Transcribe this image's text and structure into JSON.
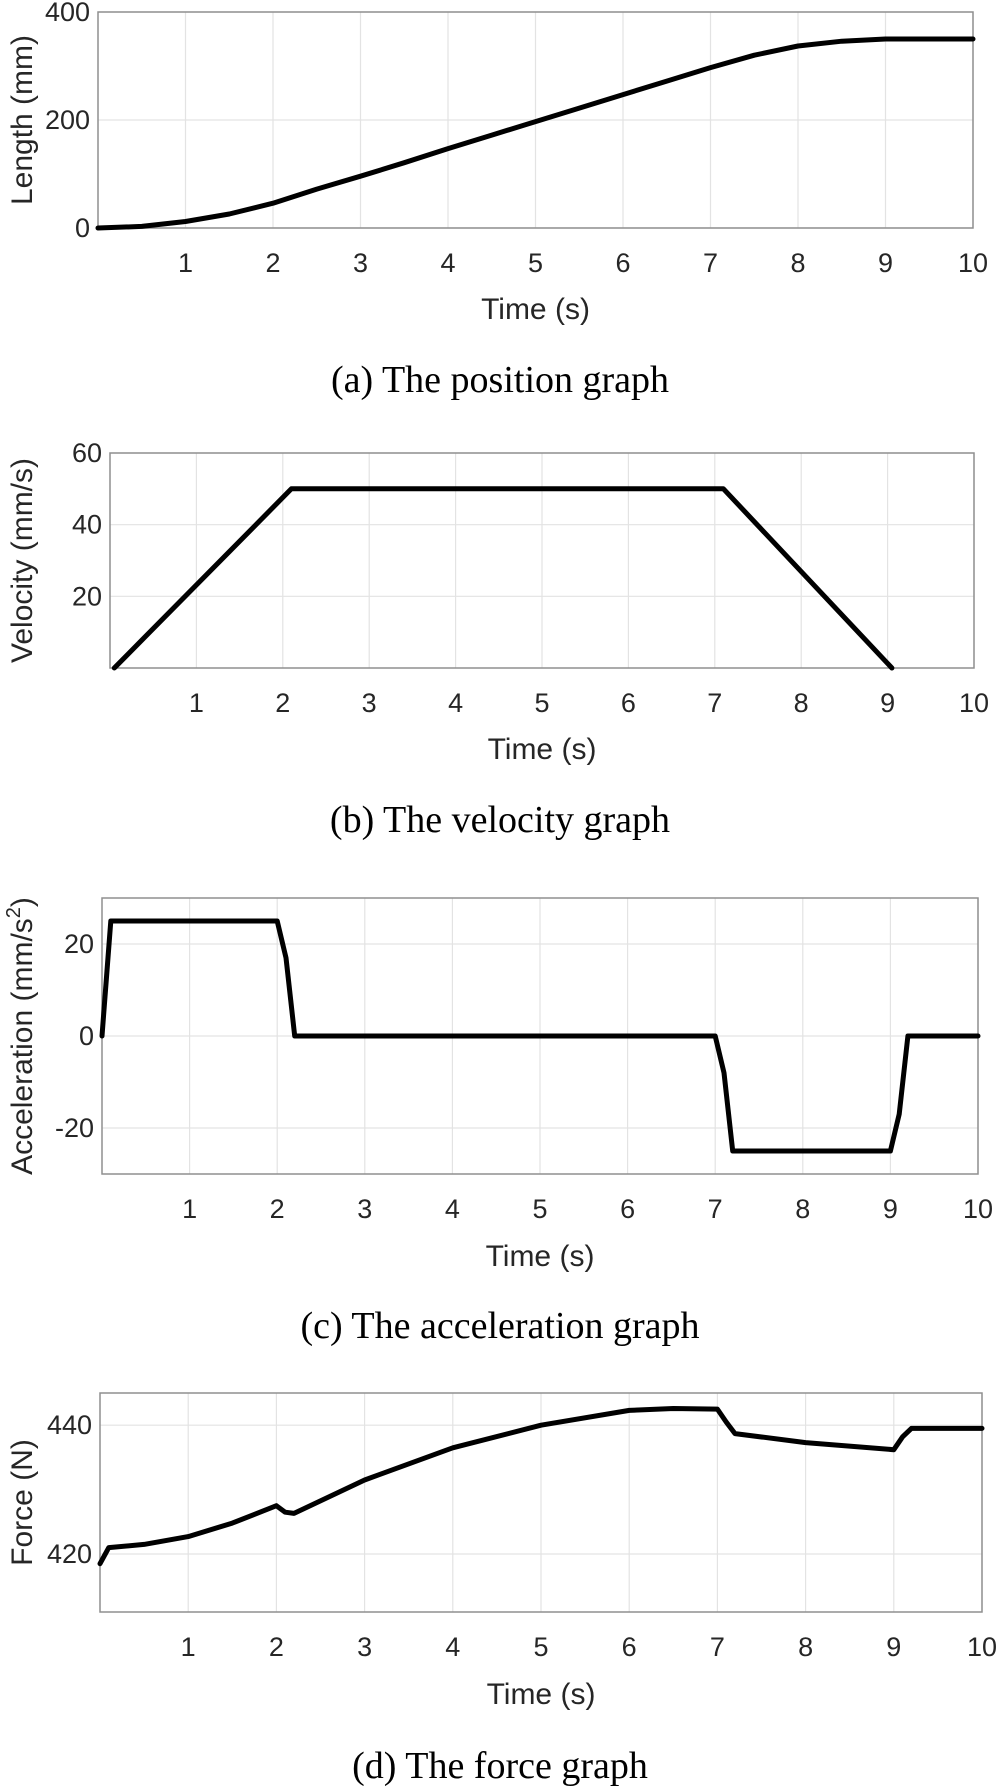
{
  "chart_data": [
    {
      "type": "line",
      "caption": "(a) The position graph",
      "xlabel": "Time (s)",
      "ylabel": "Length (mm)",
      "xlim": [
        0,
        10
      ],
      "ylim": [
        0,
        400
      ],
      "xticks": [
        1,
        2,
        3,
        4,
        5,
        6,
        7,
        8,
        9,
        10
      ],
      "yticks": [
        0,
        200,
        400
      ],
      "grid": true,
      "series": [
        {
          "color": "#000000",
          "x": [
            0,
            0.5,
            1,
            1.5,
            2,
            2.5,
            3,
            3.5,
            4,
            4.5,
            5,
            5.5,
            6,
            6.5,
            7,
            7.5,
            8,
            8.5,
            9,
            9.5,
            10
          ],
          "y": [
            0,
            3,
            12,
            26,
            46,
            72,
            96,
            121,
            147,
            172,
            197,
            222,
            247,
            272,
            297,
            320,
            337,
            346,
            350,
            350,
            350
          ]
        }
      ]
    },
    {
      "type": "line",
      "caption": "(b) The velocity graph",
      "xlabel": "Time (s)",
      "ylabel": "Velocity (mm/s)",
      "xlim": [
        0,
        10
      ],
      "ylim": [
        0,
        60
      ],
      "xticks": [
        1,
        2,
        3,
        4,
        5,
        6,
        7,
        8,
        9,
        10
      ],
      "yticks": [
        20,
        40,
        60
      ],
      "grid": true,
      "series": [
        {
          "color": "#000000",
          "x": [
            0.05,
            2.1,
            7.1,
            9.05
          ],
          "y": [
            0,
            50,
            50,
            0
          ]
        }
      ]
    },
    {
      "type": "line",
      "caption": "(c) The acceleration graph",
      "xlabel": "Time (s)",
      "ylabel": "Acceleration (mm/s",
      "ylabel_sup": "2",
      "ylabel_end": ")",
      "xlim": [
        0,
        10
      ],
      "ylim": [
        -30,
        30
      ],
      "xticks": [
        1,
        2,
        3,
        4,
        5,
        6,
        7,
        8,
        9,
        10
      ],
      "yticks": [
        -20,
        0,
        20
      ],
      "grid": true,
      "series": [
        {
          "color": "#000000",
          "x": [
            0,
            0.1,
            2.0,
            2.1,
            2.2,
            7.0,
            7.1,
            7.2,
            9.0,
            9.1,
            9.2,
            10
          ],
          "y": [
            0,
            25,
            25,
            17,
            0,
            0,
            -8,
            -25,
            -25,
            -17,
            0,
            0
          ]
        }
      ]
    },
    {
      "type": "line",
      "caption": "(d) The force graph",
      "xlabel": "Time (s)",
      "ylabel": "Force (N)",
      "xlim": [
        0,
        10
      ],
      "ylim": [
        411,
        445
      ],
      "xticks": [
        1,
        2,
        3,
        4,
        5,
        6,
        7,
        8,
        9,
        10
      ],
      "yticks": [
        420,
        440
      ],
      "grid": true,
      "series": [
        {
          "color": "#000000",
          "x": [
            0,
            0.1,
            0.5,
            1,
            1.5,
            2.0,
            2.1,
            2.2,
            3,
            4,
            5,
            6,
            6.5,
            7.0,
            7.1,
            7.2,
            8,
            9.0,
            9.1,
            9.2,
            10
          ],
          "y": [
            418.5,
            421,
            421.5,
            422.7,
            424.8,
            427.5,
            426.5,
            426.3,
            431.5,
            436.5,
            440,
            442.3,
            442.6,
            442.5,
            440.5,
            438.7,
            437.3,
            436.2,
            438.2,
            439.5,
            439.5
          ]
        }
      ]
    }
  ]
}
